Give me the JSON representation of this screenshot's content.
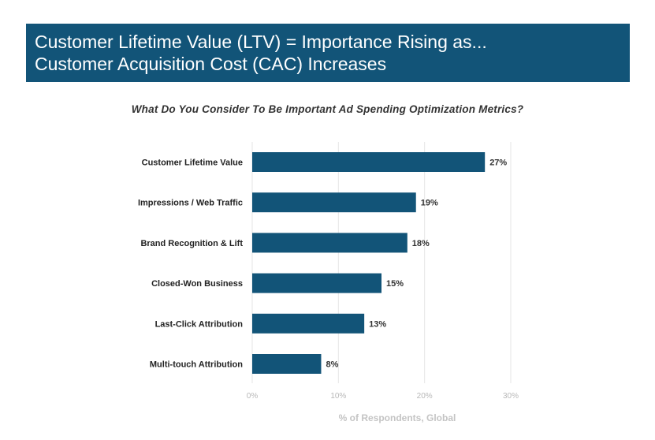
{
  "header": {
    "title_line1": "Customer Lifetime Value (LTV) = Importance Rising as...",
    "title_line2": "Customer Acquisition Cost (CAC) Increases"
  },
  "chart_data": {
    "type": "bar",
    "orientation": "horizontal",
    "title": "What Do You Consider To Be Important Ad Spending Optimization Metrics?",
    "categories": [
      "Customer Lifetime Value",
      "Impressions / Web Traffic",
      "Brand Recognition & Lift",
      "Closed-Won Business",
      "Last-Click Attribution",
      "Multi-touch Attribution"
    ],
    "values": [
      27,
      19,
      18,
      15,
      13,
      8
    ],
    "value_labels": [
      "27%",
      "19%",
      "18%",
      "15%",
      "13%",
      "8%"
    ],
    "xlabel": "% of Respondents, Global",
    "ylabel": "",
    "xlim": [
      0,
      30
    ],
    "xticks": [
      0,
      10,
      20,
      30
    ],
    "xtick_labels": [
      "0%",
      "10%",
      "20%",
      "30%"
    ],
    "grid": true,
    "colors": {
      "bar": "#125478",
      "banner": "#125478",
      "grid": "#e6e6e6"
    }
  }
}
